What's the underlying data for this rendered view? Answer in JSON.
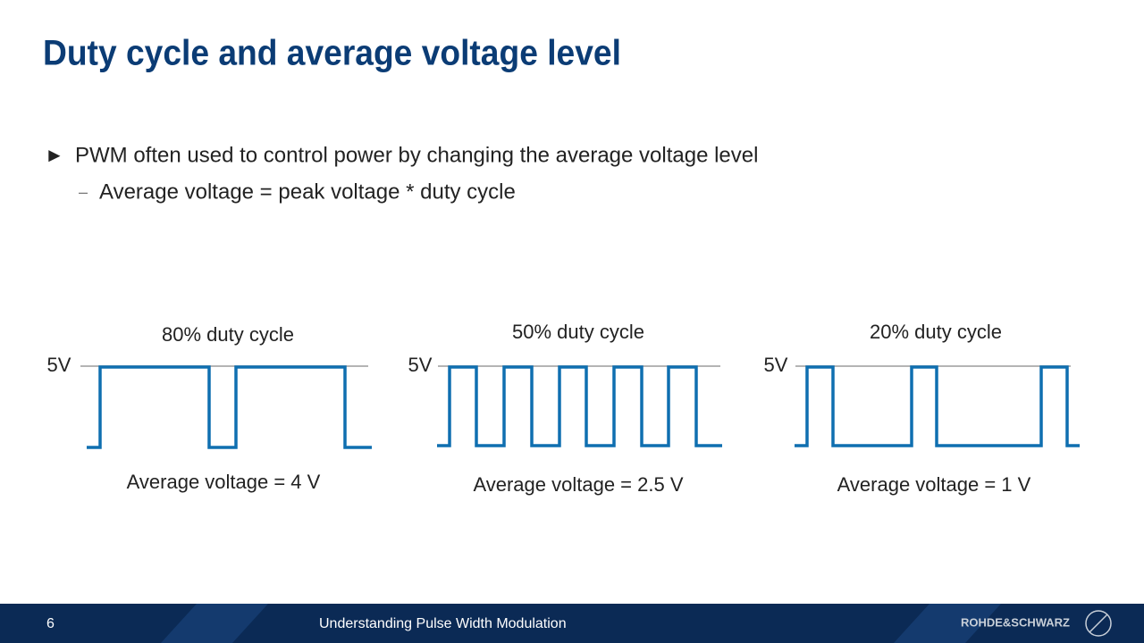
{
  "header": {
    "title": "Duty cycle and average voltage level"
  },
  "bullets": [
    {
      "marker": "►",
      "text": "PWM often used to control power by changing the average voltage level",
      "sub": [
        {
          "marker": "–",
          "text": "Average voltage = peak voltage * duty cycle"
        }
      ]
    }
  ],
  "panels": [
    {
      "title": "80% duty cycle",
      "level": "5V",
      "caption": "Average voltage = 4 V"
    },
    {
      "title": "50% duty cycle",
      "level": "5V",
      "caption": "Average voltage = 2.5 V"
    },
    {
      "title": "20% duty cycle",
      "level": "5V",
      "caption": "Average voltage = 1 V"
    }
  ],
  "footer": {
    "page": "6",
    "title": "Understanding Pulse Width Modulation",
    "brand": "ROHDE&SCHWARZ"
  }
}
